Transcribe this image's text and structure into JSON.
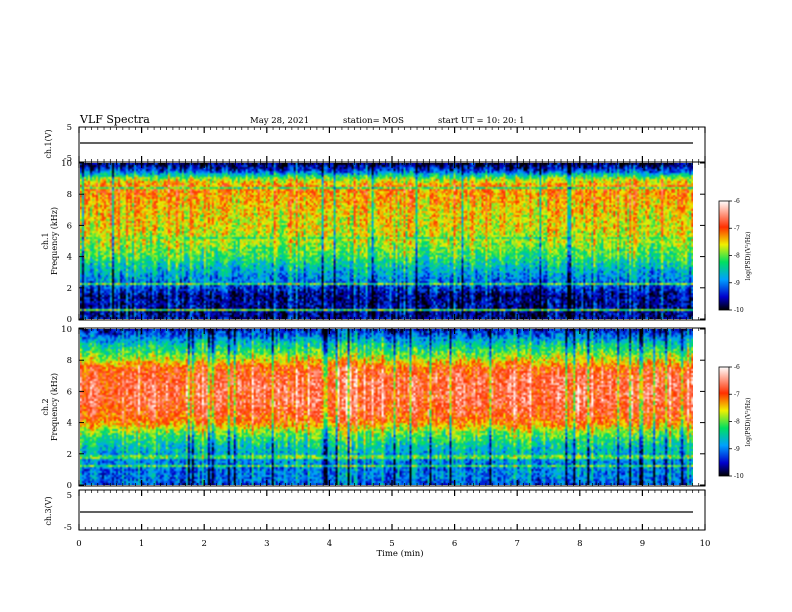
{
  "header": {
    "title": "VLF Spectra",
    "date": "May 28, 2021",
    "station": "station= MOS",
    "start": "start  UT =   10: 20: 1"
  },
  "chart_data": [
    {
      "type": "line",
      "panel": "ch1-waveform",
      "ylabel": "ch.1(V)",
      "yticks": [
        "5",
        "-5"
      ],
      "ylim": [
        -5,
        5
      ],
      "xlim": [
        0,
        10
      ],
      "series": [
        {
          "x": [
            0,
            9.8
          ],
          "values": [
            0,
            0
          ]
        }
      ]
    },
    {
      "type": "heatmap",
      "panel": "ch1-spectrogram",
      "ylabel": "ch.1\nFrequency (kHz)",
      "yticks": [
        "0",
        "2",
        "4",
        "6",
        "8",
        "10"
      ],
      "ylim": [
        0,
        10
      ],
      "xlim": [
        0,
        9.8
      ],
      "colorbar": {
        "label": "log(PSD)(V²/Hz)",
        "ticks": [
          "-6",
          "-7",
          "-8",
          "-9",
          "-10"
        ],
        "range": [
          -10,
          -6
        ]
      },
      "profile_khz": [
        0.0,
        0.5,
        1.0,
        1.5,
        2.0,
        2.5,
        3.0,
        3.5,
        4.0,
        4.5,
        5.0,
        5.5,
        6.0,
        6.5,
        7.0,
        7.5,
        8.0,
        8.5,
        9.0,
        9.5,
        10.0
      ],
      "profile_logpsd": [
        -9.6,
        -9.7,
        -9.6,
        -9.7,
        -9.3,
        -9.0,
        -8.8,
        -8.5,
        -8.2,
        -8.0,
        -7.8,
        -7.7,
        -7.6,
        -7.6,
        -7.5,
        -7.4,
        -7.3,
        -7.2,
        -7.9,
        -9.3,
        -9.9
      ],
      "hlines_khz": [
        0.6,
        2.2,
        5.2,
        8.4
      ]
    },
    {
      "type": "heatmap",
      "panel": "ch2-spectrogram",
      "ylabel": "ch.2\nFrequency (kHz)",
      "yticks": [
        "0",
        "2",
        "4",
        "6",
        "8",
        "10"
      ],
      "ylim": [
        0,
        10
      ],
      "xlim": [
        0,
        9.8
      ],
      "colorbar": {
        "label": "log(PSD)(V²/Hz)",
        "ticks": [
          "-6",
          "-7",
          "-8",
          "-9",
          "-10"
        ],
        "range": [
          -10,
          -6
        ]
      },
      "profile_khz": [
        0.0,
        0.5,
        1.0,
        1.5,
        2.0,
        2.5,
        3.0,
        3.5,
        4.0,
        4.5,
        5.0,
        5.5,
        6.0,
        6.5,
        7.0,
        7.5,
        8.0,
        8.5,
        9.0,
        9.5,
        10.0
      ],
      "profile_logpsd": [
        -9.2,
        -9.0,
        -9.0,
        -8.9,
        -8.7,
        -8.5,
        -8.2,
        -7.8,
        -7.2,
        -6.9,
        -6.8,
        -6.7,
        -6.7,
        -6.7,
        -6.8,
        -7.0,
        -7.6,
        -8.1,
        -8.5,
        -9.0,
        -9.5
      ],
      "hlines_khz": [
        1.2,
        1.8
      ]
    },
    {
      "type": "line",
      "panel": "ch3-waveform",
      "ylabel": "ch.3(V)",
      "yticks": [
        "5",
        "-5"
      ],
      "ylim": [
        -5,
        5
      ],
      "xlim": [
        0,
        10
      ],
      "xlabel": "Time  (min)",
      "xticks": [
        "0",
        "1",
        "2",
        "3",
        "4",
        "5",
        "6",
        "7",
        "8",
        "9",
        "10"
      ],
      "series": [
        {
          "x": [
            0,
            9.8
          ],
          "values": [
            0,
            0
          ]
        }
      ]
    }
  ]
}
